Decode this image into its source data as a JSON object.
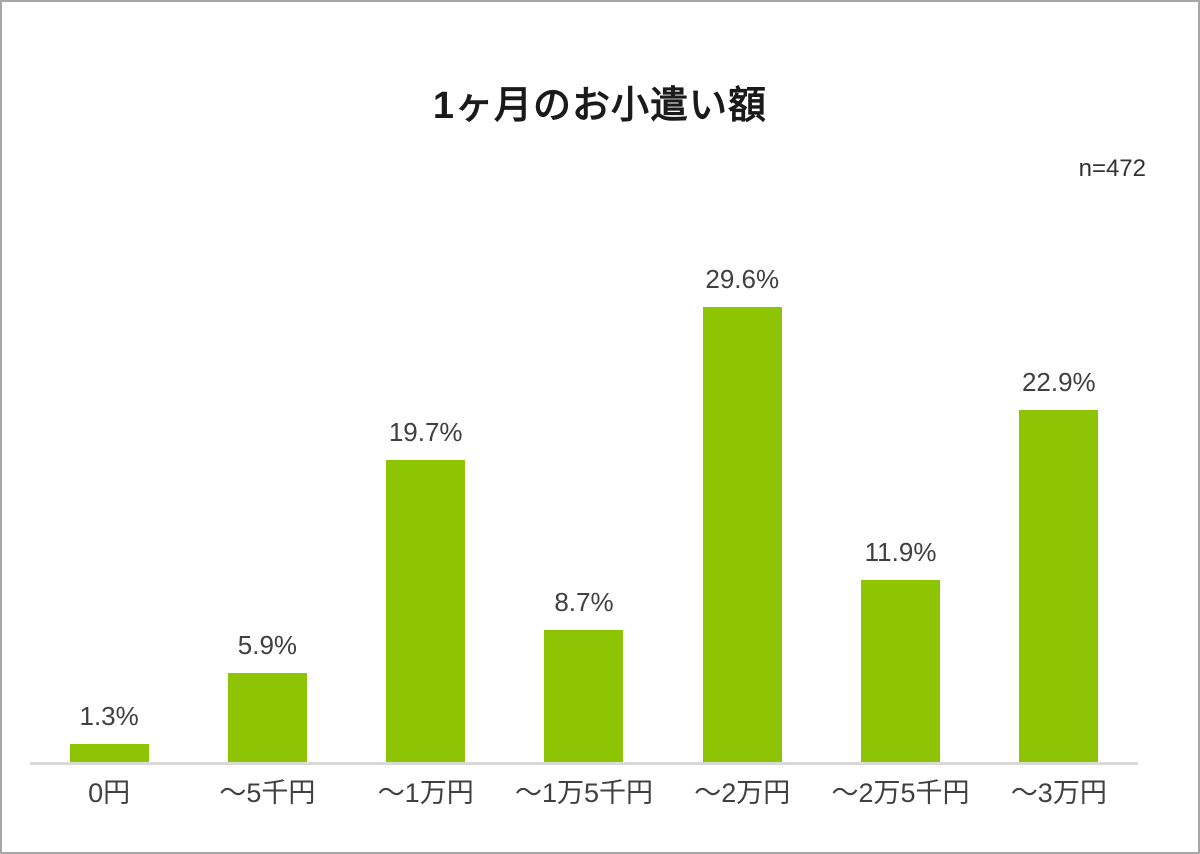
{
  "page": {
    "background_color": "#ffffff",
    "border_color": "#a6a6a6"
  },
  "chart_data": {
    "type": "bar",
    "title": "1ヶ月のお小遣い額",
    "sample_size_label": "n=472",
    "categories": [
      "0円",
      "～5千円",
      "～1万円",
      "～1万5千円",
      "～2万円",
      "～2万5千円",
      "～3万円"
    ],
    "values": [
      1.3,
      5.9,
      19.7,
      8.7,
      29.6,
      11.9,
      22.9
    ],
    "value_labels": [
      "1.3%",
      "5.9%",
      "19.7%",
      "8.7%",
      "29.6%",
      "11.9%",
      "22.9%"
    ],
    "unit": "%",
    "xlabel": "",
    "ylabel": "",
    "ylim": [
      0,
      32
    ],
    "grid": false,
    "legend": false,
    "bar_color": "#8dc404",
    "axis_line_color": "#d9d9d9",
    "value_label_color": "#404040",
    "category_label_color": "#404040",
    "title_color": "#1a1a1a"
  }
}
